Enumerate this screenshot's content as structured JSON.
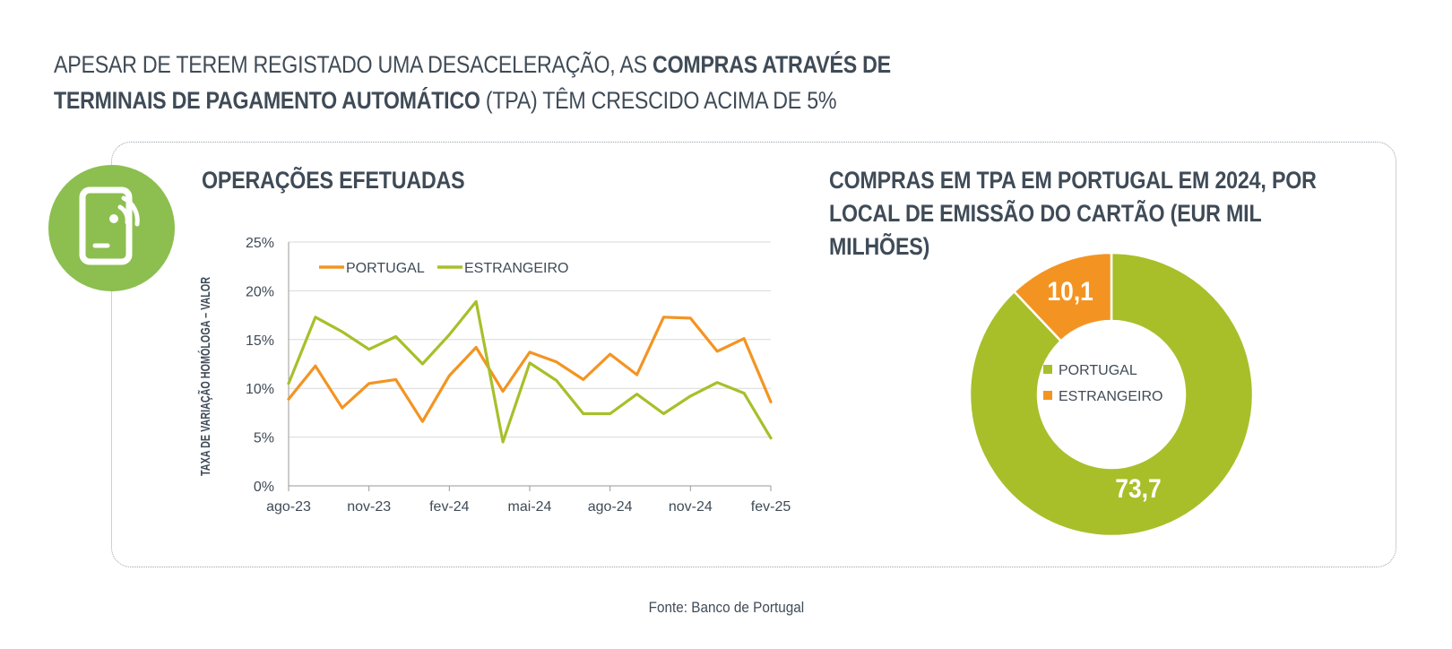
{
  "headline": {
    "part1": "APESAR DE TEREM REGISTADO UMA DESACELERAÇÃO, AS ",
    "part2_bold": "COMPRAS ATRAVÉS DE TERMINAIS DE PAGAMENTO AUTOMÁTICO",
    "part3": " (TPA) TÊM CRESCIDO ACIMA DE 5%"
  },
  "badge_icon": "mobile-contactless-payment-icon",
  "colors": {
    "portugal": "#f39422",
    "estrangeiro": "#a8bf2a",
    "badge": "#8cbf4f",
    "text": "#3f4b57",
    "grid": "#d9d9d9"
  },
  "chart_data": [
    {
      "type": "line",
      "title": "OPERAÇÕES EFETUADAS",
      "ylabel": "TAXA DE VARIAÇÃO HOMÓLOGA – VALOR",
      "xlabel": "",
      "x": [
        "ago-23",
        "set-23",
        "out-23",
        "nov-23",
        "dez-23",
        "jan-24",
        "fev-24",
        "mar-24",
        "abr-24",
        "mai-24",
        "jun-24",
        "jul-24",
        "ago-24",
        "set-24",
        "out-24",
        "nov-24",
        "dez-24",
        "jan-25",
        "fev-25"
      ],
      "x_tick_labels": [
        "ago-23",
        "nov-23",
        "fev-24",
        "mai-24",
        "ago-24",
        "nov-24",
        "fev-25"
      ],
      "y_tick_labels": [
        "0%",
        "5%",
        "10%",
        "15%",
        "20%",
        "25%"
      ],
      "ylim": [
        0,
        25
      ],
      "grid": true,
      "legend": "top-left",
      "series": [
        {
          "name": "PORTUGAL",
          "color": "#f39422",
          "values": [
            8.9,
            12.3,
            8.0,
            10.5,
            10.9,
            6.6,
            11.3,
            14.2,
            9.7,
            13.7,
            12.7,
            10.9,
            13.5,
            11.4,
            17.3,
            17.2,
            13.8,
            15.1,
            8.6
          ]
        },
        {
          "name": "ESTRANGEIRO",
          "color": "#a8bf2a",
          "values": [
            10.5,
            17.3,
            15.8,
            14.0,
            15.3,
            12.5,
            15.5,
            18.9,
            4.5,
            12.6,
            10.8,
            7.4,
            7.4,
            9.4,
            7.4,
            9.2,
            10.6,
            9.5,
            4.9
          ]
        }
      ]
    },
    {
      "type": "pie",
      "title": "COMPRAS EM TPA EM PORTUGAL EM 2024, POR LOCAL DE EMISSÃO DO CARTÃO (EUR MIL MILHÕES)",
      "donut": true,
      "legend": "center",
      "categories": [
        "PORTUGAL",
        "ESTRANGEIRO"
      ],
      "values": [
        73.7,
        10.1
      ],
      "value_labels": [
        "73,7",
        "10,1"
      ],
      "colors": [
        "#a8bf2a",
        "#f39422"
      ]
    }
  ],
  "source": "Fonte: Banco de Portugal"
}
